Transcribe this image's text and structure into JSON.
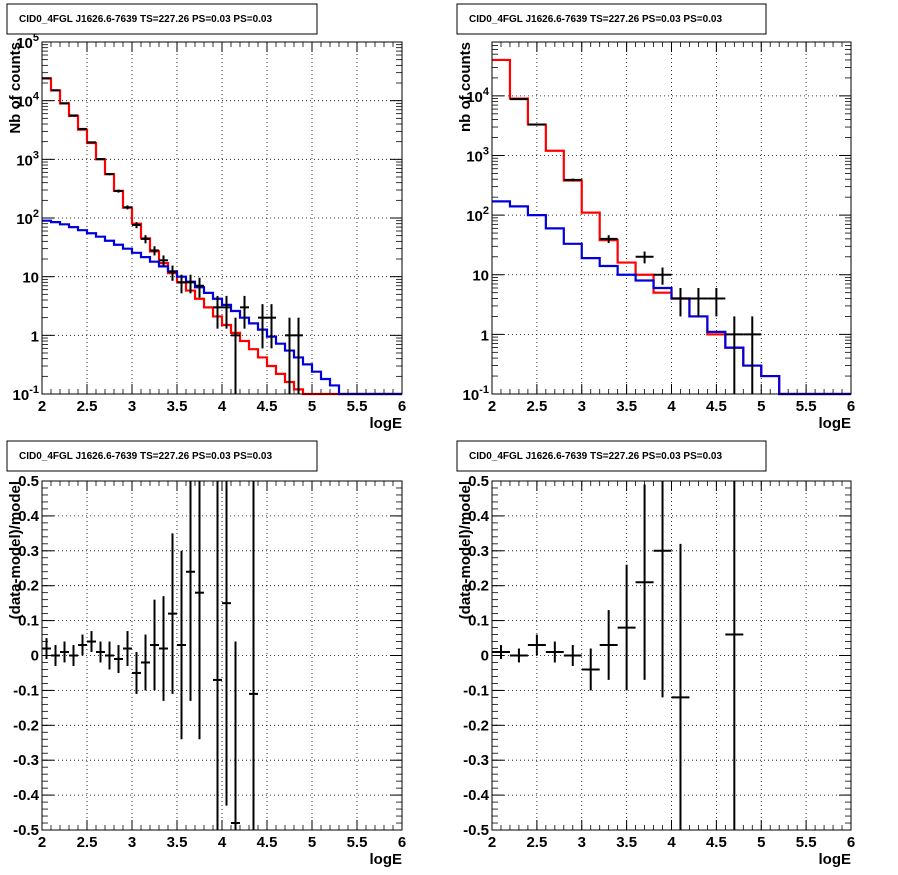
{
  "chart_data": [
    {
      "type": "step",
      "title": "CID0_4FGL J1626.6-7639 TS=227.26 PS=0.03 PS=0.03",
      "xlabel": "logE",
      "ylabel": "Nb of counts",
      "xlim": [
        2,
        6
      ],
      "ylim": [
        0.1,
        100000
      ],
      "yscale": "log",
      "grid": true,
      "x_ticks": [
        "2",
        "2.5",
        "3",
        "3.5",
        "4",
        "4.5",
        "5",
        "5.5",
        "6"
      ],
      "y_ticks": [
        "10^-1",
        "1",
        "10",
        "10^2",
        "10^3",
        "10^4",
        "10^5"
      ],
      "bin_width": 0.1,
      "series": [
        {
          "color": "#ff0000",
          "bin_edges_start": 2.0,
          "values": [
            24000,
            15000,
            9000,
            5500,
            3200,
            1900,
            1000,
            560,
            290,
            150,
            80,
            45,
            27,
            17,
            11.5,
            8,
            5.8,
            4.2,
            3.0,
            2.1,
            1.5,
            1.1,
            0.8,
            0.58,
            0.42,
            0.3,
            0.22,
            0.16,
            0.12,
            0.1,
            0.1,
            0.1,
            0.1,
            0.1,
            0.1,
            0.1,
            0.1,
            0.1,
            0.1,
            0.1
          ]
        },
        {
          "color": "#0000dd",
          "bin_edges_start": 2.0,
          "values": [
            90,
            85,
            78,
            70,
            62,
            55,
            48,
            41,
            35,
            30,
            25.5,
            21.5,
            18,
            15,
            12.3,
            10,
            8.2,
            6.6,
            5.3,
            4.2,
            3.3,
            2.6,
            2.0,
            1.6,
            1.25,
            0.95,
            0.72,
            0.55,
            0.42,
            0.32,
            0.24,
            0.18,
            0.14,
            0.1,
            0.1,
            0.1,
            0.1,
            0.1,
            0.1,
            0.1
          ]
        }
      ],
      "data_points": [
        {
          "x": 2.05,
          "y": 24000,
          "elo": 23850,
          "ehi": 24150
        },
        {
          "x": 2.15,
          "y": 15000,
          "elo": 14880,
          "ehi": 15120
        },
        {
          "x": 2.25,
          "y": 9000,
          "elo": 8900,
          "ehi": 9100
        },
        {
          "x": 2.35,
          "y": 5600,
          "elo": 5530,
          "ehi": 5670
        },
        {
          "x": 2.45,
          "y": 3300,
          "elo": 3240,
          "ehi": 3360
        },
        {
          "x": 2.55,
          "y": 1950,
          "elo": 1905,
          "ehi": 1995
        },
        {
          "x": 2.65,
          "y": 1010,
          "elo": 978,
          "ehi": 1042
        },
        {
          "x": 2.75,
          "y": 560,
          "elo": 536,
          "ehi": 584
        },
        {
          "x": 2.85,
          "y": 288,
          "elo": 271,
          "ehi": 305
        },
        {
          "x": 2.95,
          "y": 152,
          "elo": 140,
          "ehi": 164
        },
        {
          "x": 3.05,
          "y": 76,
          "elo": 67,
          "ehi": 85
        },
        {
          "x": 3.15,
          "y": 44,
          "elo": 37,
          "ehi": 51
        },
        {
          "x": 3.25,
          "y": 28,
          "elo": 23,
          "ehi": 33
        },
        {
          "x": 3.35,
          "y": 19,
          "elo": 15,
          "ehi": 23
        },
        {
          "x": 3.45,
          "y": 12,
          "elo": 8.5,
          "ehi": 15.5
        },
        {
          "x": 3.55,
          "y": 8,
          "elo": 5.2,
          "ehi": 10.8
        },
        {
          "x": 3.65,
          "y": 8,
          "elo": 5.2,
          "ehi": 10.8
        },
        {
          "x": 3.75,
          "y": 7,
          "elo": 4.4,
          "ehi": 9.6
        },
        {
          "x": 3.95,
          "y": 3,
          "elo": 1.3,
          "ehi": 4.7
        },
        {
          "x": 4.05,
          "y": 3,
          "elo": 1.3,
          "ehi": 4.7
        },
        {
          "x": 4.15,
          "y": 1,
          "elo": 0.1,
          "ehi": 2
        },
        {
          "x": 4.25,
          "y": 3,
          "elo": 1.3,
          "ehi": 4.7
        },
        {
          "x": 4.45,
          "y": 2,
          "elo": 0.6,
          "ehi": 3.4
        },
        {
          "x": 4.55,
          "y": 2,
          "elo": 0.6,
          "ehi": 3.4
        },
        {
          "x": 4.75,
          "y": 1,
          "elo": 0.1,
          "ehi": 2
        },
        {
          "x": 4.85,
          "y": 1,
          "elo": 0.1,
          "ehi": 2
        }
      ]
    },
    {
      "type": "step",
      "title": "CID0_4FGL J1626.6-7639 TS=227.26 PS=0.03 PS=0.03",
      "xlabel": "logE",
      "ylabel": "nb of counts",
      "xlim": [
        2,
        6
      ],
      "ylim": [
        0.1,
        80000
      ],
      "yscale": "log",
      "grid": true,
      "x_ticks": [
        "2",
        "2.5",
        "3",
        "3.5",
        "4",
        "4.5",
        "5",
        "5.5",
        "6"
      ],
      "y_ticks": [
        "10^-1",
        "1",
        "10",
        "10^2",
        "10^3",
        "10^4"
      ],
      "bin_width": 0.2,
      "series": [
        {
          "color": "#ff0000",
          "bin_edges_start": 2.0,
          "values": [
            40000,
            9000,
            3300,
            1200,
            380,
            110,
            38,
            16,
            10,
            5,
            4,
            2,
            1,
            0.6,
            0.3,
            0.2,
            0.1,
            0.1,
            0.1,
            0.1
          ]
        },
        {
          "color": "#0000dd",
          "bin_edges_start": 2.0,
          "values": [
            170,
            140,
            100,
            60,
            33,
            19,
            14,
            10,
            8,
            6,
            4,
            2,
            1.1,
            0.6,
            0.3,
            0.2,
            0.1,
            0.1,
            0.1,
            0.1
          ]
        }
      ],
      "data_points": [
        {
          "x": 2.3,
          "y": 8800,
          "elo": 8700,
          "ehi": 8900
        },
        {
          "x": 2.5,
          "y": 3300,
          "elo": 3240,
          "ehi": 3360
        },
        {
          "x": 2.9,
          "y": 390,
          "elo": 370,
          "ehi": 410
        },
        {
          "x": 3.3,
          "y": 40,
          "elo": 34,
          "ehi": 46
        },
        {
          "x": 3.7,
          "y": 20,
          "elo": 15.5,
          "ehi": 24.5
        },
        {
          "x": 3.9,
          "y": 10,
          "elo": 6.8,
          "ehi": 13.2
        },
        {
          "x": 4.1,
          "y": 4,
          "elo": 2,
          "ehi": 6
        },
        {
          "x": 4.3,
          "y": 4,
          "elo": 2,
          "ehi": 6
        },
        {
          "x": 4.5,
          "y": 4,
          "elo": 2,
          "ehi": 6
        },
        {
          "x": 4.7,
          "y": 1,
          "elo": 0.1,
          "ehi": 2
        },
        {
          "x": 4.9,
          "y": 1,
          "elo": 0.1,
          "ehi": 2
        }
      ]
    },
    {
      "type": "errorbar",
      "title": "CID0_4FGL J1626.6-7639 TS=227.26 PS=0.03 PS=0.03",
      "xlabel": "logE",
      "ylabel": "(data-model)/model",
      "xlim": [
        2,
        6
      ],
      "ylim": [
        -0.5,
        0.5
      ],
      "grid": true,
      "x_ticks": [
        "2",
        "2.5",
        "3",
        "3.5",
        "4",
        "4.5",
        "5",
        "5.5",
        "6"
      ],
      "y_ticks": [
        "-0.5",
        "-0.4",
        "-0.3",
        "-0.2",
        "-0.1",
        "0",
        "0.1",
        "0.2",
        "0.3",
        "0.4",
        "0.5"
      ],
      "x_half_width": 0.05,
      "points": [
        {
          "x": 2.05,
          "y": 0.02,
          "err": 0.03
        },
        {
          "x": 2.15,
          "y": 0.0,
          "err": 0.03
        },
        {
          "x": 2.25,
          "y": 0.01,
          "err": 0.03
        },
        {
          "x": 2.35,
          "y": 0.0,
          "err": 0.03
        },
        {
          "x": 2.45,
          "y": 0.03,
          "err": 0.03
        },
        {
          "x": 2.55,
          "y": 0.04,
          "err": 0.03
        },
        {
          "x": 2.65,
          "y": 0.01,
          "err": 0.03
        },
        {
          "x": 2.75,
          "y": 0.0,
          "err": 0.04
        },
        {
          "x": 2.85,
          "y": -0.01,
          "err": 0.04
        },
        {
          "x": 2.95,
          "y": 0.02,
          "err": 0.05
        },
        {
          "x": 3.05,
          "y": -0.05,
          "err": 0.06
        },
        {
          "x": 3.15,
          "y": -0.02,
          "err": 0.08
        },
        {
          "x": 3.25,
          "y": 0.03,
          "err": 0.13
        },
        {
          "x": 3.35,
          "y": 0.02,
          "err": 0.15
        },
        {
          "x": 3.45,
          "y": 0.12,
          "err": 0.23
        },
        {
          "x": 3.55,
          "y": 0.03,
          "err": 0.27
        },
        {
          "x": 3.65,
          "y": 0.24,
          "err": 0.37
        },
        {
          "x": 3.75,
          "y": 0.18,
          "err": 0.42
        },
        {
          "x": 3.95,
          "y": -0.07,
          "err": 0.58
        },
        {
          "x": 4.05,
          "y": 0.15,
          "err": 0.58
        },
        {
          "x": 4.15,
          "y": -0.48,
          "err": 0.52
        },
        {
          "x": 4.35,
          "y": -0.11,
          "err": 0.7
        }
      ]
    },
    {
      "type": "errorbar",
      "title": "CID0_4FGL J1626.6-7639 TS=227.26 PS=0.03 PS=0.03",
      "xlabel": "logE",
      "ylabel": "(data-model)/model",
      "xlim": [
        2,
        6
      ],
      "ylim": [
        -0.5,
        0.5
      ],
      "grid": true,
      "x_ticks": [
        "2",
        "2.5",
        "3",
        "3.5",
        "4",
        "4.5",
        "5",
        "5.5",
        "6"
      ],
      "y_ticks": [
        "-0.5",
        "-0.4",
        "-0.3",
        "-0.2",
        "-0.1",
        "0",
        "0.1",
        "0.2",
        "0.3",
        "0.4",
        "0.5"
      ],
      "x_half_width": 0.1,
      "points": [
        {
          "x": 2.1,
          "y": 0.01,
          "err": 0.02
        },
        {
          "x": 2.3,
          "y": 0.0,
          "err": 0.02
        },
        {
          "x": 2.5,
          "y": 0.03,
          "err": 0.03
        },
        {
          "x": 2.7,
          "y": 0.01,
          "err": 0.03
        },
        {
          "x": 2.9,
          "y": 0.0,
          "err": 0.03
        },
        {
          "x": 3.1,
          "y": -0.04,
          "err": 0.06
        },
        {
          "x": 3.3,
          "y": 0.03,
          "err": 0.1
        },
        {
          "x": 3.5,
          "y": 0.08,
          "err": 0.18
        },
        {
          "x": 3.7,
          "y": 0.21,
          "err": 0.28
        },
        {
          "x": 3.9,
          "y": 0.3,
          "err": 0.42
        },
        {
          "x": 4.1,
          "y": -0.12,
          "err": 0.44
        },
        {
          "x": 4.7,
          "y": 0.06,
          "err": 0.7
        }
      ]
    }
  ]
}
